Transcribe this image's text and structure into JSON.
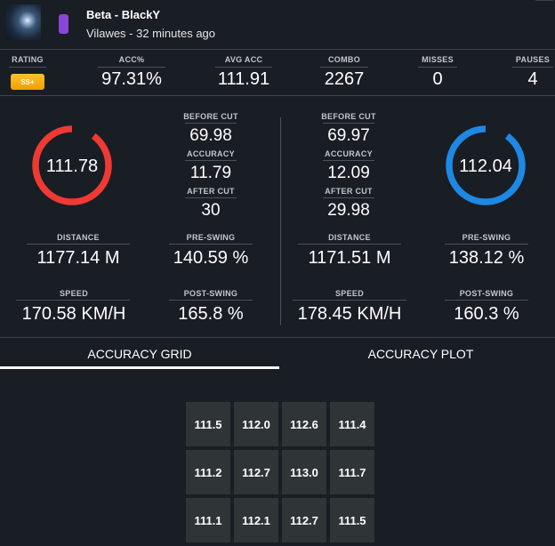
{
  "header": {
    "title": "Beta - BlackY",
    "subtitle": "Vilawes - 32 minutes ago"
  },
  "stats": {
    "rating_label": "RATING",
    "rating_badge": "SS+",
    "acc_label": "ACC%",
    "acc_value": "97.31%",
    "avg_acc_label": "AVG ACC",
    "avg_acc_value": "111.91",
    "combo_label": "COMBO",
    "combo_value": "2267",
    "misses_label": "MISSES",
    "misses_value": "0",
    "pauses_label": "PAUSES",
    "pauses_value": "4"
  },
  "left_hand": {
    "ring_value": "111.78",
    "ring_fraction": 0.9,
    "ring_color": "#ef3a34",
    "before_cut_label": "BEFORE CUT",
    "before_cut": "69.98",
    "accuracy_label": "ACCURACY",
    "accuracy": "11.79",
    "after_cut_label": "AFTER CUT",
    "after_cut": "30",
    "distance_label": "DISTANCE",
    "distance": "1177.14 M",
    "pre_swing_label": "PRE-SWING",
    "pre_swing": "140.59 %",
    "speed_label": "SPEED",
    "speed": "170.58 KM/H",
    "post_swing_label": "POST-SWING",
    "post_swing": "165.8 %"
  },
  "right_hand": {
    "ring_value": "112.04",
    "ring_fraction": 0.9,
    "ring_color": "#1e88e5",
    "before_cut_label": "BEFORE CUT",
    "before_cut": "69.97",
    "accuracy_label": "ACCURACY",
    "accuracy": "12.09",
    "after_cut_label": "AFTER CUT",
    "after_cut": "29.98",
    "distance_label": "DISTANCE",
    "distance": "1171.51 M",
    "pre_swing_label": "PRE-SWING",
    "pre_swing": "138.12 %",
    "speed_label": "SPEED",
    "speed": "178.45 KM/H",
    "post_swing_label": "POST-SWING",
    "post_swing": "160.3 %"
  },
  "tabs": [
    {
      "label": "ACCURACY GRID",
      "active": true
    },
    {
      "label": "ACCURACY PLOT",
      "active": false
    }
  ],
  "grid": [
    [
      "111.5",
      "112.0",
      "112.6",
      "111.4"
    ],
    [
      "111.2",
      "112.7",
      "113.0",
      "111.7"
    ],
    [
      "111.1",
      "112.1",
      "112.7",
      "111.5"
    ]
  ],
  "colors": {
    "background": "#191d24",
    "rating_badge": "#f5a800",
    "left_saber": "#ef3a34",
    "right_saber": "#1e88e5",
    "grid_cell": "#2f3437",
    "difficulty_pill": "#8b45d8"
  }
}
